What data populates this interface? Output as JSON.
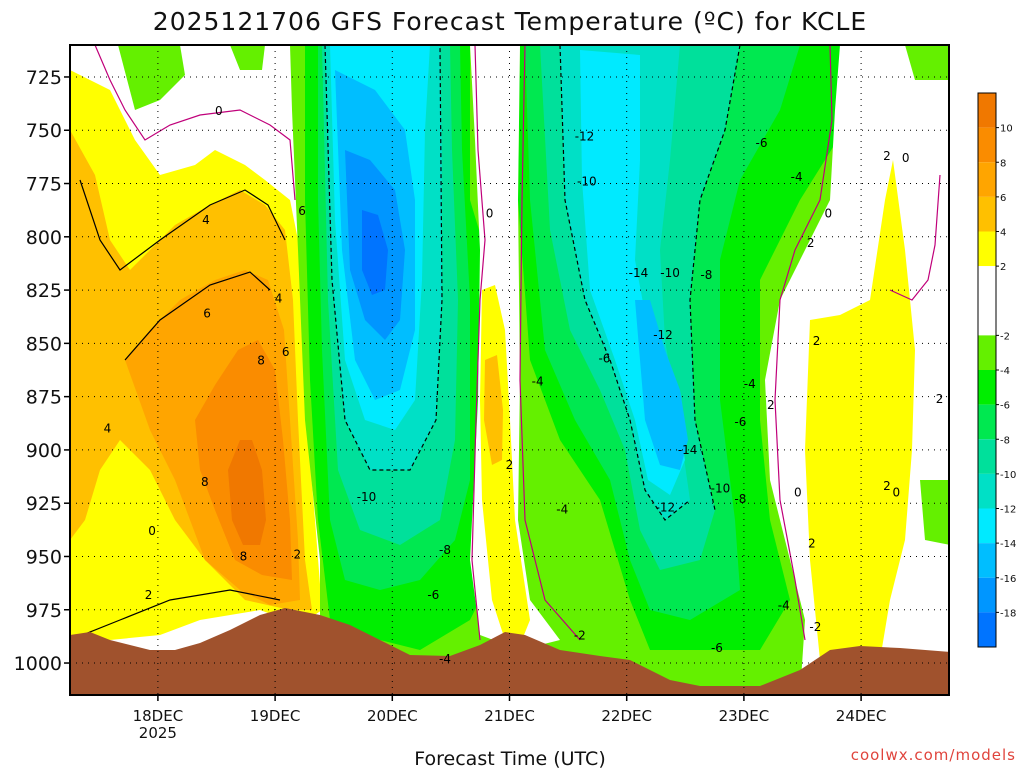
{
  "chart_data": {
    "type": "time-height contour",
    "title": "2025121706 GFS Forecast Temperature (ºC) for KCLE",
    "xlabel": "Forecast Time (UTC)",
    "ylabel": "",
    "ylim": [
      1015,
      710
    ],
    "xlim": [
      17.25,
      24.75
    ],
    "y_ticks": [
      725,
      750,
      775,
      800,
      825,
      850,
      875,
      900,
      925,
      950,
      975,
      1000
    ],
    "x_ticks": [
      {
        "value": 18,
        "label": "18DEC",
        "sublabel": "2025"
      },
      {
        "value": 19,
        "label": "19DEC"
      },
      {
        "value": 20,
        "label": "20DEC"
      },
      {
        "value": 21,
        "label": "21DEC"
      },
      {
        "value": 22,
        "label": "22DEC"
      },
      {
        "value": 23,
        "label": "23DEC"
      },
      {
        "value": 24,
        "label": "24DEC"
      }
    ],
    "colorbar": {
      "ticks": [
        10,
        8,
        6,
        4,
        2,
        -2,
        -4,
        -6,
        -8,
        -10,
        -12,
        -14,
        -16,
        -18
      ],
      "bands": [
        {
          "from": 10,
          "to": 12,
          "color": "#f07800"
        },
        {
          "from": 8,
          "to": 10,
          "color": "#fa8c00"
        },
        {
          "from": 6,
          "to": 8,
          "color": "#ffa500"
        },
        {
          "from": 4,
          "to": 6,
          "color": "#ffc000"
        },
        {
          "from": 2,
          "to": 4,
          "color": "#ffff00"
        },
        {
          "from": -2,
          "to": 2,
          "color": "#ffffff"
        },
        {
          "from": -4,
          "to": -2,
          "color": "#64f000"
        },
        {
          "from": -6,
          "to": -4,
          "color": "#00ee00"
        },
        {
          "from": -8,
          "to": -6,
          "color": "#00e850"
        },
        {
          "from": -10,
          "to": -8,
          "color": "#00e09b"
        },
        {
          "from": -12,
          "to": -10,
          "color": "#00e0c6"
        },
        {
          "from": -14,
          "to": -12,
          "color": "#00eaff"
        },
        {
          "from": -16,
          "to": -14,
          "color": "#00beff"
        },
        {
          "from": -18,
          "to": -16,
          "color": "#0096ff"
        },
        {
          "from": -20,
          "to": -18,
          "color": "#0074ff"
        }
      ]
    },
    "contour_labels": [
      {
        "x": 18.52,
        "p": 741,
        "text": "0"
      },
      {
        "x": 18.41,
        "p": 792,
        "text": "4"
      },
      {
        "x": 18.42,
        "p": 836,
        "text": "6"
      },
      {
        "x": 18.88,
        "p": 858,
        "text": "8"
      },
      {
        "x": 19.03,
        "p": 829,
        "text": "4"
      },
      {
        "x": 19.09,
        "p": 854,
        "text": "6"
      },
      {
        "x": 19.23,
        "p": 788,
        "text": "6"
      },
      {
        "x": 17.57,
        "p": 890,
        "text": "4"
      },
      {
        "x": 18.4,
        "p": 915,
        "text": "8"
      },
      {
        "x": 18.73,
        "p": 950,
        "text": "8"
      },
      {
        "x": 17.95,
        "p": 938,
        "text": "0"
      },
      {
        "x": 17.92,
        "p": 968,
        "text": "2"
      },
      {
        "x": 19.19,
        "p": 949,
        "text": "2"
      },
      {
        "x": 19.78,
        "p": 922,
        "text": "-10"
      },
      {
        "x": 20.45,
        "p": 947,
        "text": "-8"
      },
      {
        "x": 20.35,
        "p": 968,
        "text": "-6"
      },
      {
        "x": 20.45,
        "p": 998,
        "text": "-4"
      },
      {
        "x": 20.83,
        "p": 789,
        "text": "0"
      },
      {
        "x": 21.0,
        "p": 907,
        "text": "2"
      },
      {
        "x": 21.24,
        "p": 868,
        "text": "-4"
      },
      {
        "x": 21.45,
        "p": 928,
        "text": "-4"
      },
      {
        "x": 21.6,
        "p": 987,
        "text": "-2"
      },
      {
        "x": 21.64,
        "p": 753,
        "text": "-12"
      },
      {
        "x": 21.66,
        "p": 774,
        "text": "-10"
      },
      {
        "x": 21.81,
        "p": 857,
        "text": "-6"
      },
      {
        "x": 22.1,
        "p": 817,
        "text": "-14"
      },
      {
        "x": 22.37,
        "p": 817,
        "text": "-10"
      },
      {
        "x": 22.68,
        "p": 818,
        "text": "-8"
      },
      {
        "x": 22.31,
        "p": 846,
        "text": "-12"
      },
      {
        "x": 22.52,
        "p": 900,
        "text": "-14"
      },
      {
        "x": 22.33,
        "p": 927,
        "text": "-12"
      },
      {
        "x": 22.8,
        "p": 918,
        "text": "-10"
      },
      {
        "x": 22.97,
        "p": 923,
        "text": "-8"
      },
      {
        "x": 22.97,
        "p": 887,
        "text": "-6"
      },
      {
        "x": 23.05,
        "p": 869,
        "text": "-4"
      },
      {
        "x": 23.23,
        "p": 879,
        "text": "2"
      },
      {
        "x": 23.15,
        "p": 756,
        "text": "-6"
      },
      {
        "x": 23.45,
        "p": 772,
        "text": "-4"
      },
      {
        "x": 23.72,
        "p": 789,
        "text": "0"
      },
      {
        "x": 23.57,
        "p": 803,
        "text": "2"
      },
      {
        "x": 23.62,
        "p": 849,
        "text": "2"
      },
      {
        "x": 24.22,
        "p": 762,
        "text": "2"
      },
      {
        "x": 24.38,
        "p": 763,
        "text": "0"
      },
      {
        "x": 23.46,
        "p": 920,
        "text": "0"
      },
      {
        "x": 23.58,
        "p": 944,
        "text": "2"
      },
      {
        "x": 24.22,
        "p": 917,
        "text": "2"
      },
      {
        "x": 24.3,
        "p": 920,
        "text": "0"
      },
      {
        "x": 24.67,
        "p": 876,
        "text": "2"
      },
      {
        "x": 23.34,
        "p": 973,
        "text": "-4"
      },
      {
        "x": 23.61,
        "p": 983,
        "text": "-2"
      },
      {
        "x": 22.77,
        "p": 993,
        "text": "-6"
      }
    ]
  },
  "footer": {
    "credit": "coolwx.com/models"
  }
}
